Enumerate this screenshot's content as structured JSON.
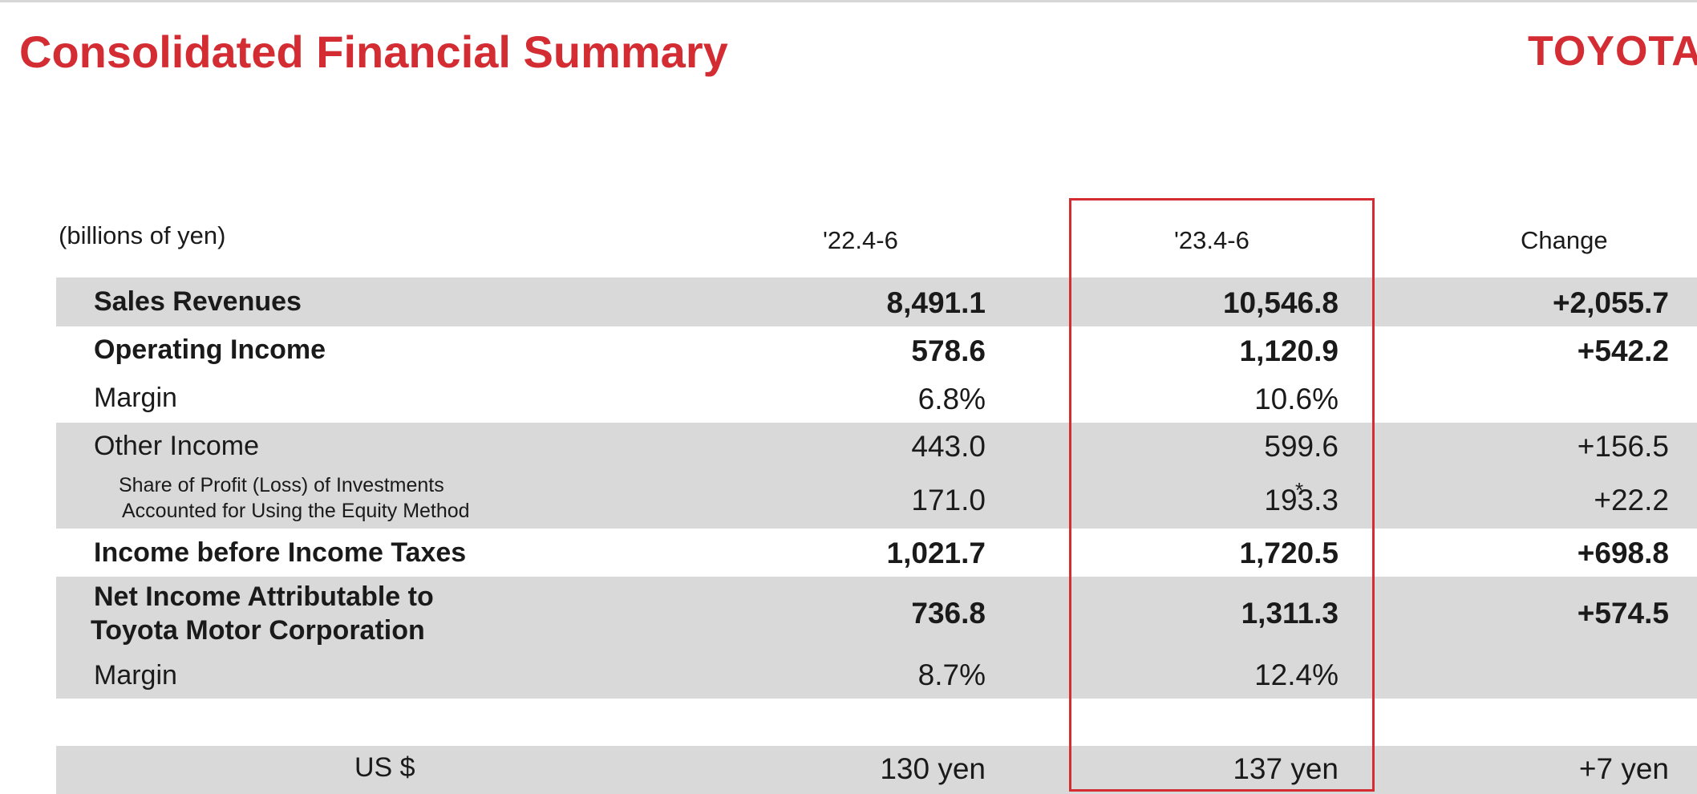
{
  "title": "Consolidated Financial Summary",
  "logo_text": "TOYOTA",
  "unit_label": "(billions of yen)",
  "columns": [
    "'22.4-6",
    "'23.4-6",
    "Change"
  ],
  "rows": [
    {
      "label": "Sales Revenues",
      "v1": "8,491.1",
      "v2": "10,546.8",
      "v3": "+2,055.7"
    },
    {
      "label": "Operating Income",
      "v1": "578.6",
      "v2": "1,120.9",
      "v3": "+542.2"
    },
    {
      "label": "Margin",
      "v1": "6.8%",
      "v2": "10.6%",
      "v3": ""
    },
    {
      "label": "Other Income",
      "v1": "443.0",
      "v2": "599.6",
      "v3": "+156.5"
    },
    {
      "label_line1": "Share of Profit (Loss) of Investments",
      "label_line2": "Accounted for Using the Equity Method",
      "v1": "171.0",
      "v2": "193.3",
      "v2_note": "*",
      "v3": "+22.2"
    },
    {
      "label": "Income before Income Taxes",
      "v1": "1,021.7",
      "v2": "1,720.5",
      "v3": "+698.8"
    },
    {
      "label_line1": "Net Income Attributable to",
      "label_line2": "Toyota Motor Corporation",
      "v1": "736.8",
      "v2": "1,311.3",
      "v3": "+574.5"
    },
    {
      "label": "Margin",
      "v1": "8.7%",
      "v2": "12.4%",
      "v3": ""
    },
    {
      "label": "US $",
      "v1": "130 yen",
      "v2": "137 yen",
      "v3": "+7 yen"
    }
  ],
  "colors": {
    "accent": "#d42c33",
    "row_shade": "#d9d9d9"
  }
}
